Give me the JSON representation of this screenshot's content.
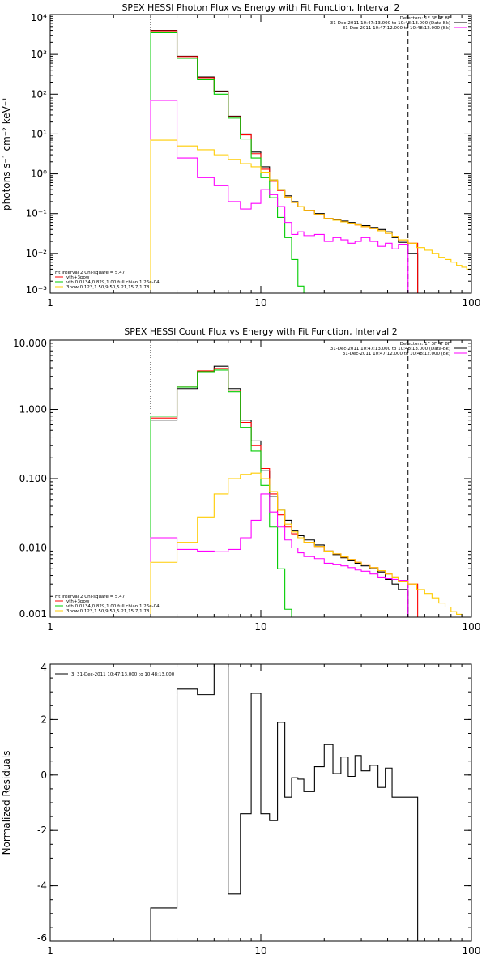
{
  "chart_data": [
    {
      "type": "line",
      "title": "SPEX HESSI Photon Flux vs Energy with Fit Function, Interval 2",
      "ylabel": "photons s⁻¹ cm⁻² keV⁻¹",
      "xlabel": "",
      "xscale": "log",
      "yscale": "log",
      "xlim": [
        1,
        100
      ],
      "ylim": [
        0.001,
        10000
      ],
      "x_ticks": [
        1,
        10,
        100
      ],
      "x_tick_labels": [
        "1",
        "10",
        "100"
      ],
      "y_ticks": [
        0.001,
        0.01,
        0.1,
        1,
        10,
        100,
        1000,
        10000
      ],
      "y_tick_labels": [
        "10⁻³",
        "10⁻²",
        "10⁻¹",
        "10⁰",
        "10¹",
        "10²",
        "10³",
        "10⁴"
      ],
      "vlines": [
        {
          "x": 3,
          "style": "dotted"
        },
        {
          "x": 50,
          "style": "dashed"
        }
      ],
      "legend_topright": [
        {
          "text": "Detectors: 1F 3F 4F 8F",
          "color": ""
        },
        {
          "text": "31-Dec-2011 10:47:13.000 to 10:48:13.000 (Data-Bk)",
          "color": "#000000"
        },
        {
          "text": "31-Dec-2011 10:47:12.000 to 10:48:12.000 (Bk)",
          "color": "#ff00ff"
        }
      ],
      "legend_bottomleft": [
        {
          "text": "Fit Interval 2   Chi-square = 5.47",
          "color": ""
        },
        {
          "text": "vth+3pow",
          "color": "#ff0000"
        },
        {
          "text": "vth 0.0134,0.829,1.00  full chian 1.26e-04",
          "color": "#00cc00"
        },
        {
          "text": "3pow 0.123,1.50,9.50,5.21,15.7,1.78",
          "color": "#ffcc00"
        }
      ],
      "series": [
        {
          "color": "#000000",
          "x": [
            3,
            4,
            5,
            6,
            7,
            8,
            9,
            10,
            11,
            12,
            13,
            14,
            15,
            16,
            18,
            20,
            22,
            24,
            26,
            28,
            30,
            33,
            36,
            39,
            42,
            45,
            50
          ],
          "values": [
            4000,
            900,
            270,
            120,
            28,
            10,
            3.5,
            1.5,
            0.7,
            0.4,
            0.28,
            0.2,
            0.15,
            0.12,
            0.1,
            0.075,
            0.07,
            0.065,
            0.06,
            0.055,
            0.05,
            0.045,
            0.04,
            0.035,
            0.025,
            0.019,
            0.01
          ]
        },
        {
          "color": "#ff0000",
          "x": [
            3,
            4,
            5,
            6,
            7,
            8,
            9,
            10,
            11,
            12,
            13,
            14,
            15,
            16,
            18,
            20,
            22,
            24,
            26,
            28,
            30,
            33,
            36,
            39,
            42,
            45,
            50
          ],
          "values": [
            3900,
            880,
            260,
            115,
            27,
            9.5,
            3.2,
            1.3,
            0.65,
            0.38,
            0.26,
            0.19,
            0.15,
            0.12,
            0.095,
            0.075,
            0.068,
            0.062,
            0.057,
            0.052,
            0.047,
            0.042,
            0.037,
            0.032,
            0.027,
            0.022,
            0.018
          ]
        },
        {
          "color": "#00cc00",
          "x": [
            3,
            4,
            5,
            6,
            7,
            8,
            9,
            10,
            11,
            12,
            13,
            14,
            15,
            16
          ],
          "values": [
            3500,
            800,
            230,
            100,
            25,
            7.5,
            2.5,
            0.8,
            0.25,
            0.08,
            0.025,
            0.007,
            0.0015,
            0.0001
          ]
        },
        {
          "color": "#ff00ff",
          "x": [
            3,
            4,
            5,
            6,
            7,
            8,
            9,
            10,
            11,
            12,
            13,
            14,
            15,
            16,
            18,
            20,
            22,
            24,
            26,
            28,
            30,
            33,
            36,
            39,
            42,
            45,
            50
          ],
          "values": [
            70,
            2.5,
            0.8,
            0.5,
            0.2,
            0.13,
            0.18,
            0.4,
            0.3,
            0.15,
            0.06,
            0.03,
            0.035,
            0.028,
            0.03,
            0.02,
            0.025,
            0.022,
            0.018,
            0.02,
            0.025,
            0.02,
            0.015,
            0.018,
            0.013,
            0.017,
            0.0005
          ]
        },
        {
          "color": "#ffcc00",
          "x": [
            3,
            4,
            5,
            6,
            7,
            8,
            9,
            10,
            11,
            12,
            13,
            14,
            15,
            16,
            18,
            20,
            22,
            24,
            26,
            28,
            30,
            33,
            36,
            39,
            42,
            45,
            50,
            55,
            60,
            65,
            70,
            75,
            80,
            85,
            90,
            95
          ],
          "values": [
            7,
            5,
            4,
            3,
            2.3,
            1.8,
            1.5,
            1.1,
            0.7,
            0.4,
            0.26,
            0.19,
            0.15,
            0.12,
            0.095,
            0.075,
            0.068,
            0.062,
            0.057,
            0.052,
            0.047,
            0.042,
            0.037,
            0.032,
            0.027,
            0.022,
            0.018,
            0.014,
            0.012,
            0.01,
            0.008,
            0.007,
            0.006,
            0.005,
            0.0045,
            0.004
          ]
        }
      ]
    },
    {
      "type": "line",
      "title": "SPEX HESSI Count Flux vs Energy with Fit Function, Interval 2",
      "xlabel": "",
      "ylabel": "",
      "xscale": "log",
      "yscale": "log",
      "xlim": [
        1,
        100
      ],
      "ylim": [
        0.001,
        10
      ],
      "x_ticks": [
        1,
        10,
        100
      ],
      "x_tick_labels": [
        "1",
        "10",
        "100"
      ],
      "y_ticks": [
        0.001,
        0.01,
        0.1,
        1,
        10
      ],
      "y_tick_labels": [
        "0.001",
        "0.010",
        "0.100",
        "1.000",
        "10.000"
      ],
      "vlines": [
        {
          "x": 3,
          "style": "dotted"
        },
        {
          "x": 50,
          "style": "dashed"
        }
      ],
      "legend_topright": [
        {
          "text": "Detectors: 1F 3F 4F 8F",
          "color": ""
        },
        {
          "text": "31-Dec-2011 10:47:13.000 to 10:48:13.000 (Data-Bk)",
          "color": "#000000"
        },
        {
          "text": "31-Dec-2011 10:47:12.000 to 10:48:12.000 (Bk)",
          "color": "#ff00ff"
        }
      ],
      "legend_bottomleft": [
        {
          "text": "Fit Interval 2   Chi-square = 5.47",
          "color": ""
        },
        {
          "text": "vth+3pow",
          "color": "#ff0000"
        },
        {
          "text": "vth 0.0134,0.829,1.00  full chian 1.26e-04",
          "color": "#00cc00"
        },
        {
          "text": "3pow 0.123,1.50,9.50,5.21,15.7,1.78",
          "color": "#ffcc00"
        }
      ],
      "series": [
        {
          "color": "#000000",
          "x": [
            3,
            4,
            5,
            6,
            7,
            8,
            9,
            10,
            11,
            12,
            13,
            14,
            15,
            16,
            18,
            20,
            22,
            24,
            26,
            28,
            30,
            33,
            36,
            39,
            42,
            45,
            50
          ],
          "values": [
            0.7,
            2,
            3.5,
            4.2,
            2,
            0.7,
            0.35,
            0.13,
            0.055,
            0.035,
            0.025,
            0.018,
            0.015,
            0.013,
            0.011,
            0.009,
            0.008,
            0.0072,
            0.0065,
            0.006,
            0.0055,
            0.005,
            0.0045,
            0.0035,
            0.003,
            0.0025,
            0.001
          ]
        },
        {
          "color": "#ff0000",
          "x": [
            3,
            4,
            5,
            6,
            7,
            8,
            9,
            10,
            11,
            12,
            13,
            14,
            15,
            16,
            18,
            20,
            22,
            24,
            26,
            28,
            30,
            33,
            36,
            39,
            42,
            45,
            50
          ],
          "values": [
            0.75,
            2.1,
            3.6,
            3.9,
            1.9,
            0.65,
            0.3,
            0.14,
            0.06,
            0.03,
            0.02,
            0.016,
            0.014,
            0.012,
            0.0105,
            0.009,
            0.0082,
            0.0074,
            0.0068,
            0.0062,
            0.0057,
            0.0052,
            0.0047,
            0.0042,
            0.0038,
            0.0033,
            0.003
          ]
        },
        {
          "color": "#00cc00",
          "x": [
            3,
            4,
            5,
            6,
            7,
            8,
            9,
            10,
            11,
            12,
            13,
            14
          ],
          "values": [
            0.8,
            2.1,
            3.5,
            3.7,
            1.8,
            0.55,
            0.25,
            0.08,
            0.02,
            0.005,
            0.0013,
            0.0001
          ]
        },
        {
          "color": "#ff00ff",
          "x": [
            3,
            4,
            5,
            6,
            7,
            8,
            9,
            10,
            11,
            12,
            13,
            14,
            15,
            16,
            18,
            20,
            22,
            24,
            26,
            28,
            30,
            33,
            36,
            39,
            42,
            45,
            50
          ],
          "values": [
            0.014,
            0.0095,
            0.009,
            0.0088,
            0.0095,
            0.014,
            0.025,
            0.06,
            0.033,
            0.02,
            0.013,
            0.01,
            0.0085,
            0.0075,
            0.007,
            0.006,
            0.0058,
            0.0055,
            0.0052,
            0.0048,
            0.0046,
            0.0042,
            0.0038,
            0.0036,
            0.0035,
            0.0034,
            0.0001
          ]
        },
        {
          "color": "#ffcc00",
          "x": [
            3,
            4,
            5,
            6,
            7,
            8,
            9,
            10,
            11,
            12,
            13,
            14,
            15,
            16,
            18,
            20,
            22,
            24,
            26,
            28,
            30,
            33,
            36,
            39,
            42,
            45,
            50,
            55,
            60,
            65,
            70,
            75,
            80,
            85,
            90,
            95
          ],
          "values": [
            0.0062,
            0.012,
            0.028,
            0.06,
            0.1,
            0.115,
            0.12,
            0.1,
            0.065,
            0.035,
            0.022,
            0.017,
            0.014,
            0.012,
            0.0105,
            0.009,
            0.0082,
            0.0074,
            0.0068,
            0.0062,
            0.0057,
            0.0052,
            0.0047,
            0.0042,
            0.0038,
            0.0033,
            0.003,
            0.0025,
            0.0022,
            0.0019,
            0.0016,
            0.0014,
            0.0012,
            0.0011,
            0.001,
            0.001
          ]
        }
      ]
    },
    {
      "type": "line",
      "title": "",
      "xlabel": "",
      "ylabel": "Normalized Residuals",
      "xscale": "log",
      "yscale": "linear",
      "xlim": [
        1,
        100
      ],
      "ylim": [
        -6,
        4
      ],
      "x_ticks": [
        1,
        10,
        100
      ],
      "x_tick_labels": [
        "1",
        "10",
        "100"
      ],
      "y_ticks": [
        -6,
        -4,
        -2,
        0,
        2,
        4
      ],
      "y_tick_labels": [
        "-6",
        "-4",
        "-2",
        "0",
        "2",
        "4"
      ],
      "legend_topleft": [
        {
          "text": "3. 31-Dec-2011 10:47:13.000 to 10:48:13.000",
          "color": "#000000"
        }
      ],
      "series": [
        {
          "color": "#000000",
          "x": [
            3,
            4,
            5,
            6,
            7,
            8,
            9,
            10,
            11,
            12,
            13,
            14,
            15,
            16,
            18,
            20,
            22,
            24,
            26,
            28,
            30,
            33,
            36,
            39,
            42,
            45,
            50
          ],
          "values": [
            -4.8,
            3.1,
            2.9,
            4.0,
            -4.3,
            -1.4,
            2.95,
            -1.4,
            -1.65,
            1.9,
            -0.8,
            -0.1,
            -0.15,
            -0.6,
            0.3,
            1.1,
            0.05,
            0.65,
            -0.05,
            0.7,
            0.15,
            0.35,
            -0.45,
            0.25,
            -0.8,
            -0.8,
            -0.8
          ]
        }
      ]
    }
  ]
}
